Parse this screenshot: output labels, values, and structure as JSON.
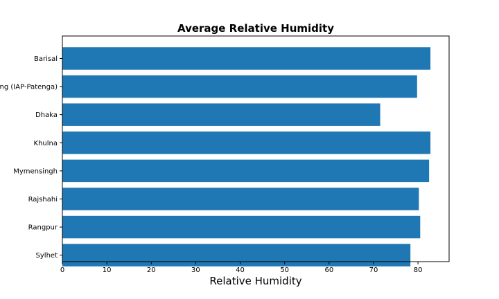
{
  "chart_data": {
    "type": "bar",
    "orientation": "horizontal",
    "title": "Average Relative Humidity",
    "xlabel": "Relative Humidity",
    "ylabel": "",
    "xlim": [
      0,
      87
    ],
    "xticks": [
      0,
      10,
      20,
      30,
      40,
      50,
      60,
      70,
      80
    ],
    "categories": [
      "Barisal",
      "Chittagong (IAP-Patenga)",
      "Dhaka",
      "Khulna",
      "Mymensingh",
      "Rajshahi",
      "Rangpur",
      "Sylhet"
    ],
    "values": [
      82.8,
      79.8,
      71.5,
      82.8,
      82.5,
      80.2,
      80.5,
      78.3
    ],
    "grid": false,
    "bar_color": "#1f77b4"
  }
}
